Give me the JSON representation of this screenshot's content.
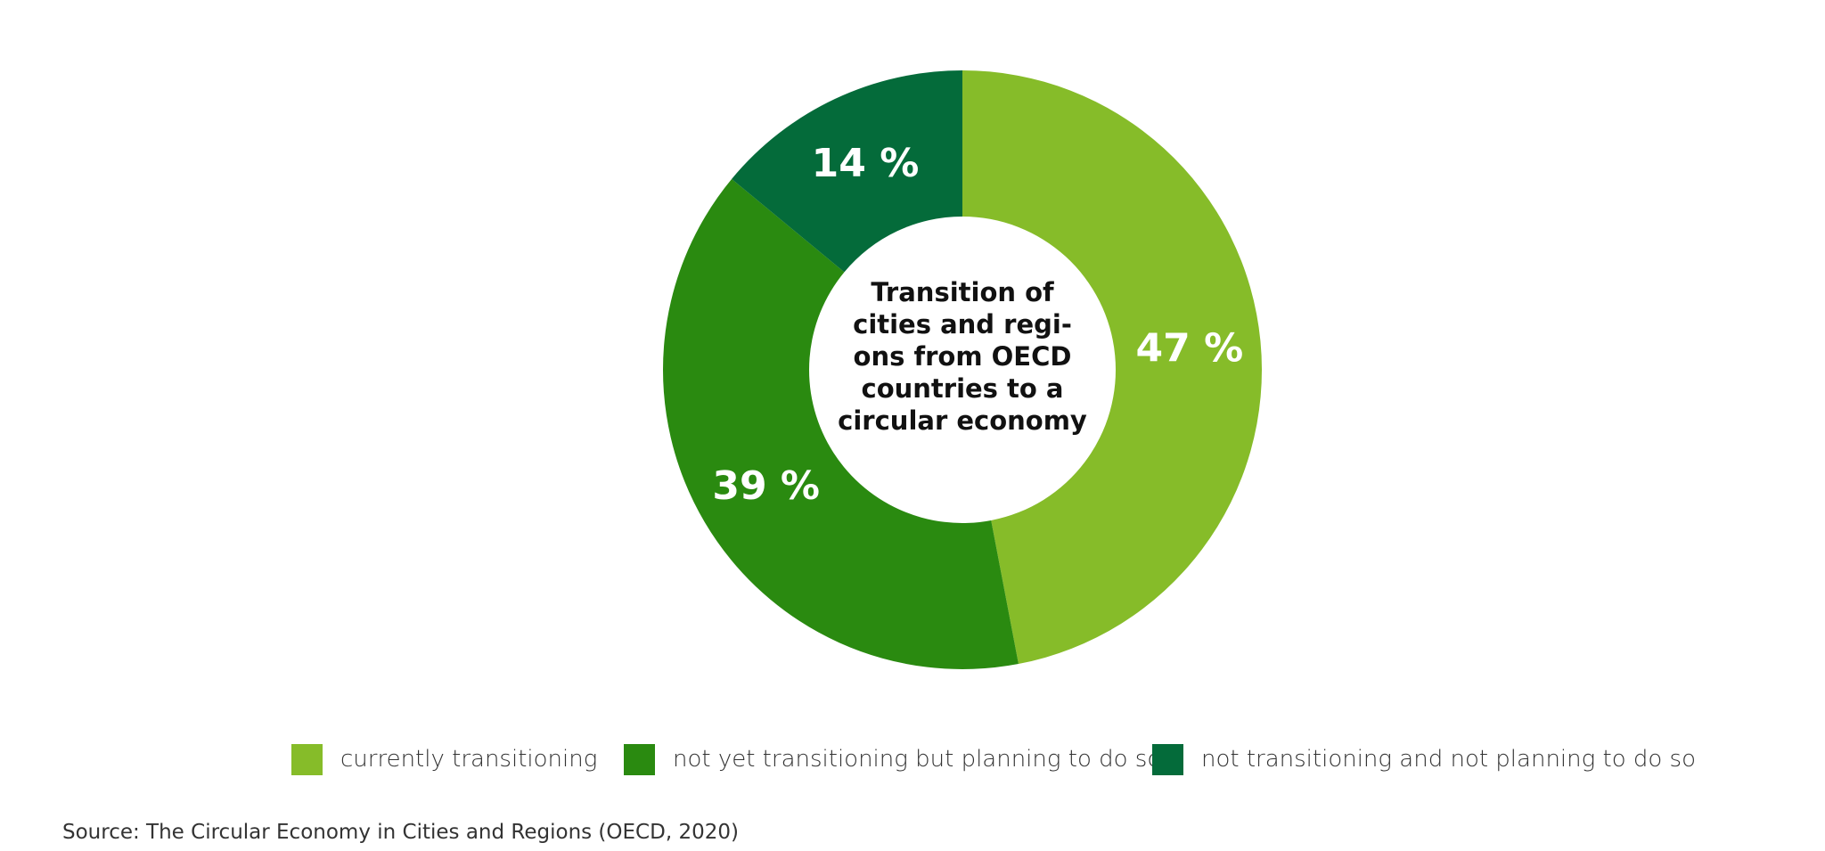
{
  "chart_data": {
    "type": "pie",
    "center_title": [
      "Transition of",
      "cities and regi-",
      "ons from OECD",
      "countries to a",
      "circular economy"
    ],
    "categories": [
      "currently transitioning",
      "not yet transitioning but planning to do so",
      "not transitioning and not planning to do so"
    ],
    "values": [
      47,
      39,
      14
    ],
    "labels": [
      "47 %",
      "39 %",
      "14 %"
    ],
    "colors": [
      "#86bc29",
      "#2a8a10",
      "#046b3a"
    ],
    "legend": "bottom",
    "donut": true
  },
  "source": "Source: The Circular Economy in Cities and Regions (OECD, 2020)"
}
